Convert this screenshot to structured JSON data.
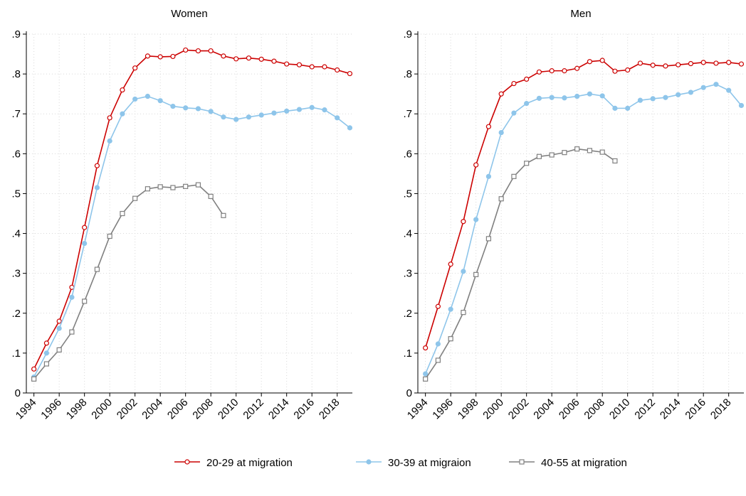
{
  "chart_data": [
    {
      "type": "line",
      "title": "Women",
      "x": [
        1994,
        1995,
        1996,
        1997,
        1998,
        1999,
        2000,
        2001,
        2002,
        2003,
        2004,
        2005,
        2006,
        2007,
        2008,
        2009,
        2010,
        2011,
        2012,
        2013,
        2014,
        2015,
        2016,
        2017,
        2018,
        2019
      ],
      "xlim": [
        1993.4,
        2019.2
      ],
      "xticks": [
        1994,
        1996,
        1998,
        2000,
        2002,
        2004,
        2006,
        2008,
        2010,
        2012,
        2014,
        2016,
        2018
      ],
      "ylim": [
        0,
        0.9
      ],
      "yticks": [
        0,
        {
          "value": 0.1,
          "label": ".1"
        },
        {
          "value": 0.2,
          "label": ".2"
        },
        {
          "value": 0.3,
          "label": ".3"
        },
        {
          "value": 0.4,
          "label": ".4"
        },
        {
          "value": 0.5,
          "label": ".5"
        },
        {
          "value": 0.6,
          "label": ".6"
        },
        {
          "value": 0.7,
          "label": ".7"
        },
        {
          "value": 0.8,
          "label": ".8"
        },
        {
          "value": 0.9,
          "label": ".9"
        }
      ],
      "grid": true,
      "series": [
        {
          "name": "20-29 at migration",
          "color": "#cc0000",
          "marker": "hollow-circle",
          "values": [
            0.06,
            0.125,
            0.18,
            0.265,
            0.415,
            0.57,
            0.69,
            0.76,
            0.815,
            0.845,
            0.843,
            0.844,
            0.86,
            0.858,
            0.858,
            0.845,
            0.838,
            0.84,
            0.837,
            0.832,
            0.825,
            0.823,
            0.818,
            0.818,
            0.81,
            0.801
          ]
        },
        {
          "name": "30-39 at migraion",
          "color": "#8ec5ea",
          "marker": "filled-circle",
          "values": [
            0.04,
            0.1,
            0.162,
            0.24,
            0.375,
            0.515,
            0.632,
            0.7,
            0.737,
            0.744,
            0.733,
            0.719,
            0.715,
            0.713,
            0.706,
            0.692,
            0.686,
            0.692,
            0.697,
            0.702,
            0.707,
            0.711,
            0.716,
            0.71,
            0.69,
            0.665
          ]
        },
        {
          "name": "40-55 at migration",
          "color": "#808080",
          "marker": "hollow-square",
          "values": [
            0.035,
            0.073,
            0.108,
            0.153,
            0.23,
            0.31,
            0.393,
            0.45,
            0.488,
            0.512,
            0.517,
            0.515,
            0.518,
            0.522,
            0.493,
            0.445,
            null,
            null,
            null,
            null,
            null,
            null,
            null,
            null,
            null,
            null
          ]
        }
      ]
    },
    {
      "type": "line",
      "title": "Men",
      "x": [
        1994,
        1995,
        1996,
        1997,
        1998,
        1999,
        2000,
        2001,
        2002,
        2003,
        2004,
        2005,
        2006,
        2007,
        2008,
        2009,
        2010,
        2011,
        2012,
        2013,
        2014,
        2015,
        2016,
        2017,
        2018,
        2019
      ],
      "xlim": [
        1993.4,
        2019.2
      ],
      "xticks": [
        1994,
        1996,
        1998,
        2000,
        2002,
        2004,
        2006,
        2008,
        2010,
        2012,
        2014,
        2016,
        2018
      ],
      "ylim": [
        0,
        0.9
      ],
      "yticks": [
        0,
        {
          "value": 0.1,
          "label": ".1"
        },
        {
          "value": 0.2,
          "label": ".2"
        },
        {
          "value": 0.3,
          "label": ".3"
        },
        {
          "value": 0.4,
          "label": ".4"
        },
        {
          "value": 0.5,
          "label": ".5"
        },
        {
          "value": 0.6,
          "label": ".6"
        },
        {
          "value": 0.7,
          "label": ".7"
        },
        {
          "value": 0.8,
          "label": ".8"
        },
        {
          "value": 0.9,
          "label": ".9"
        }
      ],
      "grid": true,
      "series": [
        {
          "name": "20-29 at migration",
          "color": "#cc0000",
          "marker": "hollow-circle",
          "values": [
            0.113,
            0.217,
            0.323,
            0.43,
            0.572,
            0.668,
            0.75,
            0.776,
            0.787,
            0.805,
            0.808,
            0.808,
            0.814,
            0.831,
            0.834,
            0.807,
            0.81,
            0.827,
            0.822,
            0.82,
            0.823,
            0.826,
            0.829,
            0.827,
            0.829,
            0.825
          ]
        },
        {
          "name": "30-39 at migraion",
          "color": "#8ec5ea",
          "marker": "filled-circle",
          "values": [
            0.048,
            0.123,
            0.21,
            0.305,
            0.435,
            0.543,
            0.653,
            0.702,
            0.726,
            0.739,
            0.741,
            0.74,
            0.744,
            0.75,
            0.745,
            0.714,
            0.714,
            0.734,
            0.738,
            0.741,
            0.748,
            0.754,
            0.766,
            0.774,
            0.759,
            0.721
          ]
        },
        {
          "name": "40-55 at migration",
          "color": "#808080",
          "marker": "hollow-square",
          "values": [
            0.035,
            0.082,
            0.136,
            0.202,
            0.297,
            0.387,
            0.487,
            0.543,
            0.576,
            0.593,
            0.597,
            0.603,
            0.612,
            0.608,
            0.604,
            0.582,
            null,
            null,
            null,
            null,
            null,
            null,
            null,
            null,
            null,
            null
          ]
        }
      ]
    }
  ]
}
